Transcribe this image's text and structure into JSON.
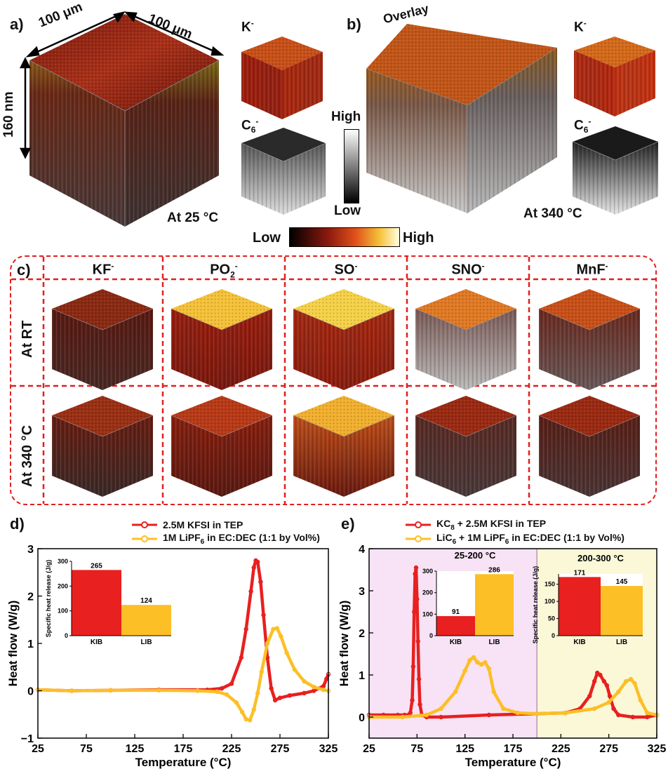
{
  "panel_a": {
    "label": "a)",
    "dim_top_left": "100 μm",
    "dim_top_right": "100 μm",
    "dim_side": "160 nm",
    "temp": "At 25 °C",
    "k_label": "K",
    "c6_label": "C",
    "c6_sub": "6",
    "ion_sup": "-"
  },
  "panel_b": {
    "label": "b)",
    "overlay": "Overlay",
    "temp": "At 340 °C",
    "k_label": "K",
    "c6_label": "C",
    "c6_sub": "6",
    "ion_sup": "-"
  },
  "grey_scale": {
    "high": "High",
    "low": "Low"
  },
  "heat_scale": {
    "low": "Low",
    "high": "High"
  },
  "panel_c": {
    "label": "c)",
    "columns": [
      {
        "name": "KF",
        "sub": "",
        "sup": "-"
      },
      {
        "name": "PO",
        "sub": "2",
        "sup": "-"
      },
      {
        "name": "SO",
        "sub": "",
        "sup": "-"
      },
      {
        "name": "SNO",
        "sub": "",
        "sup": "-"
      },
      {
        "name": "MnF",
        "sub": "",
        "sup": "-"
      }
    ],
    "rows": [
      "At RT",
      "At 340 °C"
    ]
  },
  "panel_d": {
    "label": "d)",
    "legend": [
      {
        "name": "2.5M KFSI in TEP",
        "color": "#e8201f"
      },
      {
        "pre": "1M LiPF",
        "sub": "6",
        "post": " in EC:DEC (1:1 by Vol%)",
        "color": "#fcbf26"
      }
    ]
  },
  "panel_e": {
    "label": "e)",
    "legend": [
      {
        "pre": "KC",
        "sub": "8",
        "post": " + 2.5M KFSI in TEP",
        "color": "#e8201f"
      },
      {
        "pre": "LiC",
        "sub": "6",
        "post": " + 1M LiPF",
        "sub2": "6",
        "post2": " in EC:DEC (1:1 by Vol%)",
        "color": "#fcbf26"
      }
    ]
  },
  "chart_data": [
    {
      "type": "line",
      "panel": "d",
      "xlabel": "Temperature (°C)",
      "ylabel": "Heat flow (W/g)",
      "xlim": [
        25,
        325
      ],
      "ylim": [
        -1,
        3
      ],
      "xticks": [
        25,
        75,
        125,
        175,
        225,
        275,
        325
      ],
      "yticks": [
        -1,
        0,
        1,
        2,
        3
      ],
      "series": [
        {
          "name": "2.5M KFSI in TEP",
          "color": "#e8201f",
          "x": [
            25,
            60,
            100,
            150,
            200,
            215,
            225,
            235,
            240,
            245,
            248,
            250,
            252,
            255,
            258,
            262,
            266,
            270,
            275,
            285,
            300,
            310,
            320,
            323,
            325
          ],
          "y": [
            0.02,
            0.0,
            0.01,
            0.02,
            0.02,
            0.05,
            0.15,
            0.7,
            1.3,
            2.1,
            2.6,
            2.75,
            2.72,
            2.3,
            1.6,
            0.7,
            0.05,
            -0.2,
            -0.15,
            -0.1,
            -0.05,
            0.0,
            0.1,
            0.25,
            0.35
          ]
        },
        {
          "name": "1M LiPF6 in EC:DEC (1:1 by Vol%)",
          "color": "#fcbf26",
          "x": [
            25,
            60,
            100,
            150,
            190,
            210,
            220,
            230,
            236,
            240,
            244,
            248,
            252,
            256,
            262,
            268,
            272,
            276,
            282,
            290,
            300,
            310,
            320,
            325
          ],
          "y": [
            0.02,
            0.0,
            0.01,
            0.01,
            0.0,
            -0.02,
            -0.08,
            -0.25,
            -0.45,
            -0.6,
            -0.62,
            -0.4,
            -0.05,
            0.4,
            1.0,
            1.3,
            1.32,
            1.15,
            0.8,
            0.45,
            0.2,
            0.08,
            0.02,
            0.0
          ]
        }
      ]
    },
    {
      "type": "bar",
      "panel": "d-inset",
      "ylabel": "Specific heat release (J/g)",
      "categories": [
        "KIB",
        "LIB"
      ],
      "values": [
        265,
        124
      ],
      "ylim": [
        0,
        300
      ],
      "yticks": [
        0,
        100,
        200,
        300
      ]
    },
    {
      "type": "line",
      "panel": "e",
      "xlabel": "Temperature (°C)",
      "ylabel": "Heat flow (W/g)",
      "xlim": [
        25,
        325
      ],
      "ylim": [
        -0.5,
        4
      ],
      "xticks": [
        25,
        75,
        125,
        175,
        225,
        275,
        325
      ],
      "yticks": [
        0,
        1,
        2,
        3,
        4
      ],
      "series": [
        {
          "name": "KC8 + 2.5M KFSI in TEP",
          "color": "#e8201f",
          "x": [
            25,
            40,
            55,
            62,
            66,
            68,
            70,
            71,
            72,
            73,
            74,
            75,
            76,
            77,
            78,
            80,
            85,
            100,
            150,
            200,
            230,
            245,
            255,
            260,
            263,
            266,
            270,
            273,
            276,
            280,
            285,
            300,
            315,
            325
          ],
          "y": [
            0.05,
            0.05,
            0.05,
            0.05,
            0.05,
            0.1,
            0.4,
            1.2,
            2.5,
            3.4,
            3.55,
            2.8,
            1.8,
            0.9,
            0.3,
            0.05,
            0.0,
            0.0,
            0.05,
            0.08,
            0.1,
            0.2,
            0.5,
            0.85,
            1.05,
            1.0,
            0.85,
            0.75,
            0.5,
            0.2,
            0.05,
            0.0,
            0.0,
            0.05
          ]
        },
        {
          "name": "LiC6 + 1M LiPF6 in EC:DEC (1:1 by Vol%)",
          "color": "#fcbf26",
          "x": [
            25,
            60,
            85,
            100,
            115,
            125,
            130,
            134,
            138,
            142,
            146,
            150,
            155,
            165,
            180,
            200,
            230,
            260,
            275,
            285,
            293,
            298,
            302,
            308,
            315,
            325
          ],
          "y": [
            0.0,
            0.0,
            0.05,
            0.2,
            0.6,
            1.1,
            1.35,
            1.42,
            1.3,
            1.25,
            1.3,
            1.15,
            0.6,
            0.2,
            0.1,
            0.08,
            0.1,
            0.2,
            0.35,
            0.6,
            0.85,
            0.9,
            0.8,
            0.4,
            0.1,
            0.05
          ]
        }
      ],
      "regions": [
        {
          "label": "25-200 °C",
          "x": [
            25,
            200
          ],
          "color": "#f7e3f5"
        },
        {
          "label": "200-300 °C",
          "x": [
            200,
            325
          ],
          "color": "#fbf8d8"
        }
      ]
    },
    {
      "type": "bar",
      "panel": "e-inset-1",
      "title": "25-200 °C",
      "categories": [
        "KIB",
        "LIB"
      ],
      "values": [
        91,
        286
      ],
      "ylim": [
        0,
        300
      ],
      "yticks": [
        0,
        100,
        200,
        300
      ]
    },
    {
      "type": "bar",
      "panel": "e-inset-2",
      "title": "200-300 °C",
      "ylabel": "Specific heat release (J/g)",
      "categories": [
        "KIB",
        "LIB"
      ],
      "values": [
        171,
        145
      ],
      "ylim": [
        0,
        180
      ],
      "yticks": [
        0,
        50,
        100,
        150
      ]
    }
  ]
}
